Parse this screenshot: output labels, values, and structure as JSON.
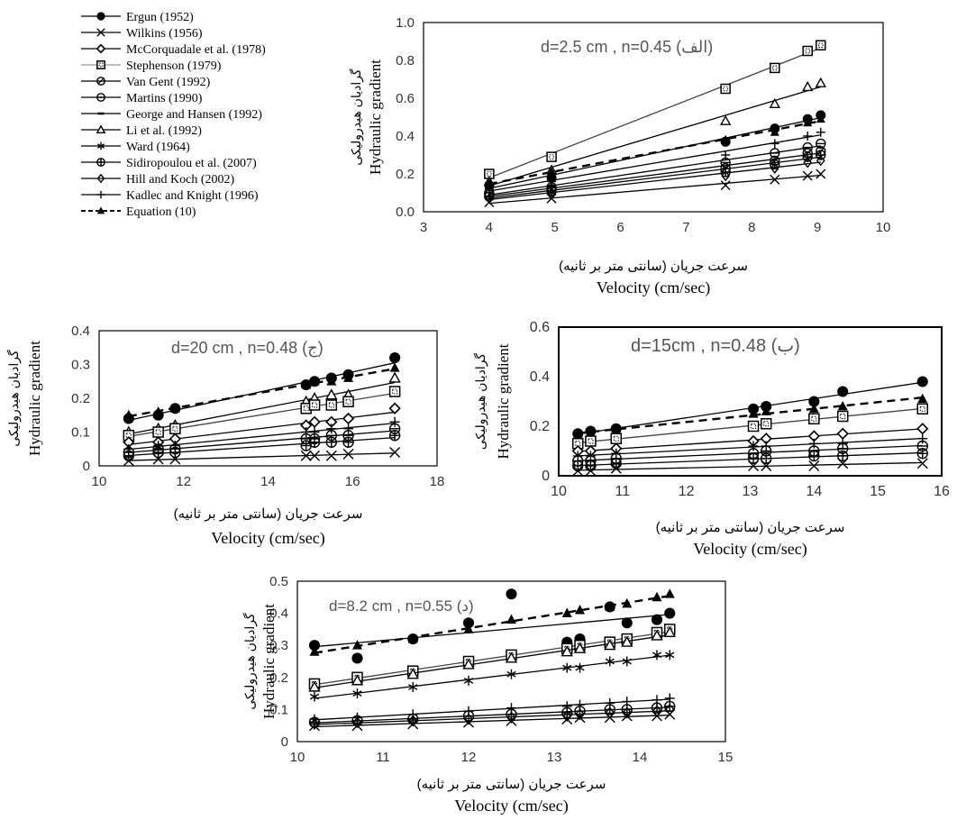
{
  "legend": [
    {
      "label": "Ergun (1952)",
      "marker": "circle",
      "line": "solid"
    },
    {
      "label": "Wilkins (1956)",
      "marker": "x",
      "line": "solid"
    },
    {
      "label": "McCorquadale et al. (1978)",
      "marker": "diamond",
      "line": "solid"
    },
    {
      "label": "Stephenson (1979)",
      "marker": "square-dotted",
      "line": "solid-gray"
    },
    {
      "label": "Van Gent (1992)",
      "marker": "circle-slash",
      "line": "solid"
    },
    {
      "label": "Martins (1990)",
      "marker": "circle-bar",
      "line": "solid"
    },
    {
      "label": "George and Hansen (1992)",
      "marker": "bar",
      "line": "solid"
    },
    {
      "label": "Li et al. (1992)",
      "marker": "small-triangle",
      "line": "solid"
    },
    {
      "label": "Ward (1964)",
      "marker": "asterisk",
      "line": "solid"
    },
    {
      "label": "Sidiropoulou et al. (2007)",
      "marker": "circle-plus",
      "line": "solid"
    },
    {
      "label": "Hill and Koch (2002)",
      "marker": "open-diamond",
      "line": "solid"
    },
    {
      "label": "Kadlec and Knight (1996)",
      "marker": "plus",
      "line": "solid"
    },
    {
      "label": "Equation (10)",
      "marker": "triangle",
      "line": "dashed"
    }
  ],
  "chart_data": [
    {
      "type": "scatter",
      "annotation": "(الف) d=2.5 cm , n=0.45",
      "ylabel_fa": "گرادیان هیدرولیکی",
      "ylabel": "Hydraulic gradient",
      "xlabel_fa": "سرعت جریان (سانتی متر بر ثانیه)",
      "xlabel": "Velocity (cm/sec)",
      "xlim": [
        3,
        10
      ],
      "ylim": [
        0,
        1.0
      ],
      "xticks": [
        3,
        4,
        5,
        6,
        7,
        8,
        9,
        10
      ],
      "yticks": [
        0.0,
        0.2,
        0.4,
        0.6,
        0.8,
        1.0
      ],
      "ytick_labels": [
        "0.0",
        "0.2",
        "0.4",
        "0.6",
        "0.8",
        "1.0"
      ],
      "x": [
        4.0,
        4.95,
        7.6,
        8.35,
        8.85,
        9.05
      ],
      "series": [
        {
          "name": "Stephenson (1979)",
          "marker": "square-dotted",
          "values": [
            0.2,
            0.29,
            0.65,
            0.76,
            0.85,
            0.88
          ]
        },
        {
          "name": "Li et al. (1992)",
          "marker": "small-triangle",
          "values": [
            0.16,
            0.22,
            0.48,
            0.57,
            0.66,
            0.68
          ]
        },
        {
          "name": "Ergun (1952)",
          "marker": "circle",
          "values": [
            0.14,
            0.18,
            0.37,
            0.44,
            0.49,
            0.51
          ]
        },
        {
          "name": "Equation (10)",
          "marker": "triangle",
          "line": "dashed",
          "values": [
            0.15,
            0.21,
            0.38,
            0.42,
            0.47,
            0.49
          ]
        },
        {
          "name": "Kadlec and Knight (1996)",
          "marker": "plus",
          "values": [
            0.12,
            0.16,
            0.3,
            0.36,
            0.4,
            0.42
          ]
        },
        {
          "name": "Martins (1990)",
          "marker": "circle-bar",
          "values": [
            0.1,
            0.13,
            0.26,
            0.31,
            0.34,
            0.36
          ]
        },
        {
          "name": "Van Gent (1992)",
          "marker": "circle-slash",
          "values": [
            0.09,
            0.12,
            0.23,
            0.27,
            0.31,
            0.32
          ]
        },
        {
          "name": "Sidiropoulou et al. (2007)",
          "marker": "circle-plus",
          "values": [
            0.08,
            0.11,
            0.21,
            0.25,
            0.29,
            0.3
          ]
        },
        {
          "name": "Hill and Koch (2002)",
          "marker": "open-diamond",
          "values": [
            0.07,
            0.1,
            0.19,
            0.23,
            0.26,
            0.27
          ]
        },
        {
          "name": "Wilkins (1956)",
          "marker": "x",
          "values": [
            0.05,
            0.07,
            0.14,
            0.17,
            0.19,
            0.2
          ]
        }
      ]
    },
    {
      "type": "scatter",
      "annotation": "(ج) d=20 cm , n=0.48",
      "ylabel_fa": "گرادیان هیدرولیکی",
      "ylabel": "Hydraulic gradient",
      "xlabel_fa": "سرعت جریان (سانتی متر بر ثانیه)",
      "xlabel": "Velocity (cm/sec)",
      "xlim": [
        10,
        18
      ],
      "ylim": [
        0,
        0.4
      ],
      "xticks": [
        10,
        12,
        14,
        16,
        18
      ],
      "yticks": [
        0,
        0.1,
        0.2,
        0.3,
        0.4
      ],
      "ytick_labels": [
        "0",
        "0.1",
        "0.2",
        "0.3",
        "0.4"
      ],
      "x": [
        10.7,
        11.4,
        11.8,
        14.9,
        15.1,
        15.5,
        15.9,
        17.0
      ],
      "series": [
        {
          "name": "Ergun (1952)",
          "marker": "circle",
          "values": [
            0.14,
            0.15,
            0.17,
            0.24,
            0.25,
            0.26,
            0.27,
            0.32
          ]
        },
        {
          "name": "Equation (10)",
          "marker": "triangle",
          "line": "dashed",
          "values": [
            0.15,
            0.16,
            0.17,
            0.24,
            0.25,
            0.25,
            0.26,
            0.29
          ]
        },
        {
          "name": "Li et al. (1992)",
          "marker": "small-triangle",
          "values": [
            0.1,
            0.11,
            0.12,
            0.19,
            0.2,
            0.21,
            0.21,
            0.26
          ]
        },
        {
          "name": "Stephenson (1979)",
          "marker": "square-dotted",
          "values": [
            0.09,
            0.1,
            0.11,
            0.17,
            0.18,
            0.18,
            0.19,
            0.22
          ]
        },
        {
          "name": "McCorquadale et al. (1978)",
          "marker": "diamond",
          "values": [
            0.07,
            0.07,
            0.08,
            0.12,
            0.13,
            0.13,
            0.14,
            0.17
          ]
        },
        {
          "name": "Kadlec and Knight (1996)",
          "marker": "plus",
          "values": [
            0.05,
            0.06,
            0.06,
            0.1,
            0.1,
            0.11,
            0.11,
            0.13
          ]
        },
        {
          "name": "Martins (1990)",
          "marker": "circle-bar",
          "values": [
            0.04,
            0.05,
            0.05,
            0.08,
            0.08,
            0.09,
            0.09,
            0.11
          ]
        },
        {
          "name": "Sidiropoulou et al. (2007)",
          "marker": "circle-plus",
          "values": [
            0.03,
            0.04,
            0.04,
            0.06,
            0.07,
            0.07,
            0.07,
            0.09
          ]
        },
        {
          "name": "Wilkins (1956)",
          "marker": "x",
          "values": [
            0.015,
            0.02,
            0.02,
            0.03,
            0.03,
            0.03,
            0.035,
            0.04
          ]
        }
      ]
    },
    {
      "type": "scatter",
      "annotation": "(ب) d=15cm , n=0.48",
      "ylabel_fa": "گرادیان هیدرولیکی",
      "ylabel": "Hydraulic gradient",
      "xlabel_fa": "سرعت جریان (سانتی متر بر ثانیه)",
      "xlabel": "Velocity (cm/sec)",
      "xlim": [
        10,
        16
      ],
      "ylim": [
        0,
        0.6
      ],
      "xticks": [
        10,
        11,
        12,
        13,
        14,
        15,
        16
      ],
      "yticks": [
        0,
        0.2,
        0.4,
        0.6
      ],
      "ytick_labels": [
        "0",
        "0.2",
        "0.4",
        "0.6"
      ],
      "x": [
        10.3,
        10.5,
        10.9,
        13.05,
        13.25,
        14.0,
        14.45,
        15.7
      ],
      "series": [
        {
          "name": "Ergun (1952)",
          "marker": "circle",
          "values": [
            0.17,
            0.18,
            0.19,
            0.27,
            0.28,
            0.3,
            0.34,
            0.38
          ]
        },
        {
          "name": "Equation (10)",
          "marker": "triangle",
          "line": "dashed",
          "values": [
            0.17,
            0.17,
            0.19,
            0.25,
            0.26,
            0.27,
            0.28,
            0.31
          ]
        },
        {
          "name": "Stephenson (1979)",
          "marker": "square-dotted",
          "values": [
            0.13,
            0.14,
            0.15,
            0.2,
            0.21,
            0.23,
            0.24,
            0.27
          ]
        },
        {
          "name": "McCorquadale et al. (1978)",
          "marker": "diamond",
          "values": [
            0.1,
            0.1,
            0.11,
            0.14,
            0.15,
            0.16,
            0.17,
            0.19
          ]
        },
        {
          "name": "Kadlec and Knight (1996)",
          "marker": "plus",
          "values": [
            0.08,
            0.08,
            0.09,
            0.12,
            0.12,
            0.13,
            0.13,
            0.15
          ]
        },
        {
          "name": "Martins (1990)",
          "marker": "circle-bar",
          "values": [
            0.06,
            0.06,
            0.07,
            0.09,
            0.1,
            0.1,
            0.11,
            0.12
          ]
        },
        {
          "name": "Sidiropoulou et al. (2007)",
          "marker": "circle-plus",
          "values": [
            0.04,
            0.04,
            0.05,
            0.07,
            0.07,
            0.08,
            0.08,
            0.09
          ]
        },
        {
          "name": "Wilkins (1956)",
          "marker": "x",
          "values": [
            0.02,
            0.02,
            0.03,
            0.04,
            0.04,
            0.04,
            0.05,
            0.05
          ]
        }
      ]
    },
    {
      "type": "scatter",
      "annotation": "(د) d=8.2 cm , n=0.55",
      "ylabel_fa": "گرادیان هیدرولیکی",
      "ylabel": "Hydraulic gradient",
      "xlabel_fa": "سرعت جریان (سانتی متر بر ثانیه)",
      "xlabel": "Velocity (cm/sec)",
      "xlim": [
        10,
        15
      ],
      "ylim": [
        0,
        0.5
      ],
      "xticks": [
        10,
        11,
        12,
        13,
        14,
        15
      ],
      "yticks": [
        0,
        0.1,
        0.2,
        0.3,
        0.4,
        0.5
      ],
      "ytick_labels": [
        "0",
        "0.1",
        "0.2",
        "0.3",
        "0.4",
        "0.5"
      ],
      "x": [
        10.2,
        10.7,
        11.35,
        12.0,
        12.5,
        13.15,
        13.3,
        13.65,
        13.85,
        14.2,
        14.35
      ],
      "series": [
        {
          "name": "Ergun (1952)",
          "marker": "circle",
          "values": [
            0.3,
            0.26,
            0.32,
            0.37,
            0.46,
            0.31,
            0.32,
            0.42,
            0.37,
            0.38,
            0.4
          ]
        },
        {
          "name": "Equation (10)",
          "marker": "triangle",
          "line": "dashed",
          "values": [
            0.28,
            0.3,
            0.32,
            0.35,
            0.38,
            0.4,
            0.41,
            0.42,
            0.43,
            0.45,
            0.46
          ]
        },
        {
          "name": "Stephenson (1979)",
          "marker": "square-dotted",
          "values": [
            0.18,
            0.2,
            0.22,
            0.25,
            0.27,
            0.29,
            0.3,
            0.31,
            0.32,
            0.34,
            0.35
          ]
        },
        {
          "name": "Li et al. (1992)",
          "marker": "small-triangle",
          "values": [
            0.17,
            0.19,
            0.21,
            0.24,
            0.26,
            0.28,
            0.29,
            0.3,
            0.31,
            0.33,
            0.34
          ]
        },
        {
          "name": "Ward (1964)",
          "marker": "asterisk",
          "values": [
            0.14,
            0.15,
            0.17,
            0.19,
            0.21,
            0.23,
            0.23,
            0.25,
            0.25,
            0.27,
            0.27
          ]
        },
        {
          "name": "Kadlec and Knight (1996)",
          "marker": "plus",
          "values": [
            0.07,
            0.075,
            0.085,
            0.095,
            0.105,
            0.11,
            0.115,
            0.12,
            0.125,
            0.13,
            0.135
          ]
        },
        {
          "name": "Sidiropoulou et al. (2007)",
          "marker": "circle-plus",
          "values": [
            0.06,
            0.065,
            0.07,
            0.08,
            0.085,
            0.09,
            0.095,
            0.1,
            0.1,
            0.105,
            0.11
          ]
        },
        {
          "name": "Hill and Koch (2002)",
          "marker": "open-diamond",
          "values": [
            0.055,
            0.06,
            0.065,
            0.07,
            0.075,
            0.08,
            0.085,
            0.09,
            0.09,
            0.095,
            0.1
          ]
        },
        {
          "name": "Wilkins (1956)",
          "marker": "x",
          "values": [
            0.05,
            0.05,
            0.055,
            0.06,
            0.065,
            0.07,
            0.075,
            0.075,
            0.08,
            0.08,
            0.085
          ]
        }
      ]
    }
  ]
}
